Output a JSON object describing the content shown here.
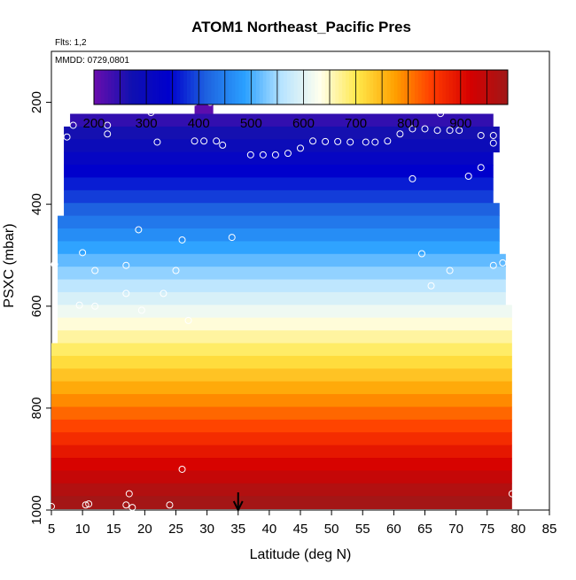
{
  "chart_data": {
    "type": "heatmap",
    "title": "ATOM1 Northeast_Pacific Pres",
    "annotations": [
      "Flts: 1,2",
      "MMDD: 0729,0801"
    ],
    "xlabel": "Latitude (deg N)",
    "ylabel": "PSXC (mbar)",
    "xlim": [
      5,
      85
    ],
    "ylim": [
      1000,
      100
    ],
    "xticks": [
      "5",
      "10",
      "15",
      "20",
      "25",
      "30",
      "35",
      "40",
      "45",
      "50",
      "55",
      "60",
      "65",
      "70",
      "75",
      "80",
      "85"
    ],
    "yticks": [
      "200",
      "400",
      "600",
      "800",
      "1000"
    ],
    "colorbar": {
      "min": 200,
      "max": 990,
      "ticks": [
        "200",
        "300",
        "400",
        "500",
        "600",
        "700",
        "800",
        "900"
      ],
      "colors": [
        "#6a0dad",
        "#1010b0",
        "#0000cd",
        "#1e63e0",
        "#2aa0ff",
        "#b8e4ff",
        "#ffffee",
        "#ffe84a",
        "#ffa000",
        "#ff3b00",
        "#d50000",
        "#a01818"
      ]
    },
    "marker_latitude": 35,
    "bins": [
      {
        "p": 210,
        "lat": [
          28,
          31
        ],
        "v": 210
      },
      {
        "p": 235,
        "lat": [
          8,
          76
        ],
        "v": 245
      },
      {
        "p": 260,
        "lat": [
          7,
          77
        ],
        "v": 268
      },
      {
        "p": 285,
        "lat": [
          7,
          77
        ],
        "v": 292
      },
      {
        "p": 310,
        "lat": [
          7,
          76
        ],
        "v": 318
      },
      {
        "p": 335,
        "lat": [
          7,
          76
        ],
        "v": 342
      },
      {
        "p": 360,
        "lat": [
          7,
          76
        ],
        "v": 365
      },
      {
        "p": 385,
        "lat": [
          7,
          76
        ],
        "v": 388
      },
      {
        "p": 410,
        "lat": [
          7,
          77
        ],
        "v": 415
      },
      {
        "p": 435,
        "lat": [
          6,
          77
        ],
        "v": 440
      },
      {
        "p": 460,
        "lat": [
          6,
          77
        ],
        "v": 465
      },
      {
        "p": 485,
        "lat": [
          6,
          77
        ],
        "v": 490
      },
      {
        "p": 510,
        "lat": [
          6,
          78
        ],
        "v": 515
      },
      {
        "p": 535,
        "lat": [
          6,
          78
        ],
        "v": 540
      },
      {
        "p": 560,
        "lat": [
          6,
          78
        ],
        "v": 565
      },
      {
        "p": 585,
        "lat": [
          6,
          78
        ],
        "v": 590
      },
      {
        "p": 610,
        "lat": [
          6,
          79
        ],
        "v": 615
      },
      {
        "p": 635,
        "lat": [
          6,
          79
        ],
        "v": 640
      },
      {
        "p": 660,
        "lat": [
          6,
          79
        ],
        "v": 665
      },
      {
        "p": 685,
        "lat": [
          5,
          79
        ],
        "v": 690
      },
      {
        "p": 710,
        "lat": [
          5,
          79
        ],
        "v": 715
      },
      {
        "p": 735,
        "lat": [
          5,
          79
        ],
        "v": 740
      },
      {
        "p": 760,
        "lat": [
          5,
          79
        ],
        "v": 765
      },
      {
        "p": 785,
        "lat": [
          5,
          79
        ],
        "v": 790
      },
      {
        "p": 810,
        "lat": [
          5,
          79
        ],
        "v": 815
      },
      {
        "p": 835,
        "lat": [
          5,
          79
        ],
        "v": 840
      },
      {
        "p": 860,
        "lat": [
          5,
          79
        ],
        "v": 865
      },
      {
        "p": 885,
        "lat": [
          5,
          79
        ],
        "v": 890
      },
      {
        "p": 910,
        "lat": [
          5,
          79
        ],
        "v": 915
      },
      {
        "p": 935,
        "lat": [
          5,
          79
        ],
        "v": 940
      },
      {
        "p": 960,
        "lat": [
          5,
          79
        ],
        "v": 965
      },
      {
        "p": 985,
        "lat": [
          5,
          79
        ],
        "v": 985
      }
    ],
    "points": [
      {
        "lat": 28,
        "p": 200
      },
      {
        "lat": 30.5,
        "p": 200
      },
      {
        "lat": 8.5,
        "p": 245
      },
      {
        "lat": 14,
        "p": 245
      },
      {
        "lat": 21,
        "p": 220
      },
      {
        "lat": 67.5,
        "p": 222
      },
      {
        "lat": 63,
        "p": 252
      },
      {
        "lat": 65,
        "p": 252
      },
      {
        "lat": 67,
        "p": 255
      },
      {
        "lat": 69,
        "p": 255
      },
      {
        "lat": 70.5,
        "p": 255
      },
      {
        "lat": 7.5,
        "p": 268
      },
      {
        "lat": 14,
        "p": 262
      },
      {
        "lat": 61,
        "p": 262
      },
      {
        "lat": 74,
        "p": 265
      },
      {
        "lat": 76,
        "p": 265
      },
      {
        "lat": 22,
        "p": 278
      },
      {
        "lat": 28,
        "p": 276
      },
      {
        "lat": 29.5,
        "p": 276
      },
      {
        "lat": 31.5,
        "p": 276
      },
      {
        "lat": 32.5,
        "p": 284
      },
      {
        "lat": 47,
        "p": 276
      },
      {
        "lat": 49,
        "p": 277
      },
      {
        "lat": 51,
        "p": 277
      },
      {
        "lat": 53,
        "p": 278
      },
      {
        "lat": 55.5,
        "p": 278
      },
      {
        "lat": 57,
        "p": 278
      },
      {
        "lat": 59,
        "p": 276
      },
      {
        "lat": 76,
        "p": 280
      },
      {
        "lat": 45,
        "p": 290
      },
      {
        "lat": 37,
        "p": 303
      },
      {
        "lat": 39,
        "p": 303
      },
      {
        "lat": 41,
        "p": 303
      },
      {
        "lat": 43,
        "p": 300
      },
      {
        "lat": 74,
        "p": 328
      },
      {
        "lat": 63,
        "p": 350
      },
      {
        "lat": 72,
        "p": 345
      },
      {
        "lat": 19,
        "p": 450
      },
      {
        "lat": 26,
        "p": 470
      },
      {
        "lat": 34,
        "p": 465
      },
      {
        "lat": 10,
        "p": 495
      },
      {
        "lat": 64.5,
        "p": 497
      },
      {
        "lat": 5.5,
        "p": 518
      },
      {
        "lat": 12,
        "p": 530
      },
      {
        "lat": 17,
        "p": 520
      },
      {
        "lat": 25,
        "p": 530
      },
      {
        "lat": 69,
        "p": 530
      },
      {
        "lat": 76,
        "p": 520
      },
      {
        "lat": 77.5,
        "p": 515
      },
      {
        "lat": 66,
        "p": 560
      },
      {
        "lat": 17,
        "p": 575
      },
      {
        "lat": 23,
        "p": 575
      },
      {
        "lat": 9.5,
        "p": 598
      },
      {
        "lat": 12,
        "p": 600
      },
      {
        "lat": 19.5,
        "p": 608
      },
      {
        "lat": 27,
        "p": 628
      },
      {
        "lat": 26,
        "p": 920
      },
      {
        "lat": 17.5,
        "p": 968
      },
      {
        "lat": 10.5,
        "p": 990
      },
      {
        "lat": 11,
        "p": 988
      },
      {
        "lat": 17,
        "p": 990
      },
      {
        "lat": 18,
        "p": 995
      },
      {
        "lat": 24,
        "p": 990
      },
      {
        "lat": 5,
        "p": 993
      },
      {
        "lat": 79,
        "p": 968
      }
    ]
  }
}
